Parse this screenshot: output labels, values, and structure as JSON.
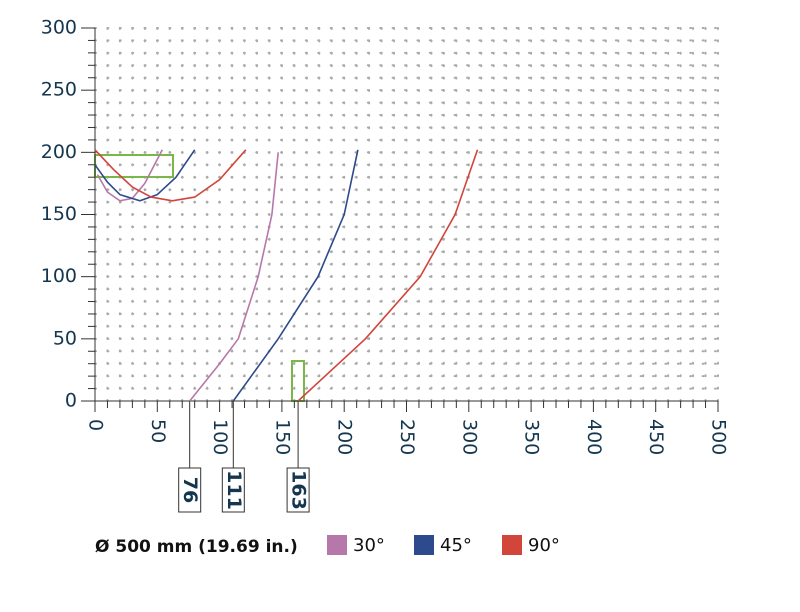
{
  "chart_data": {
    "type": "line",
    "xlim": [
      0,
      500
    ],
    "ylim": [
      0,
      300
    ],
    "xticks": [
      0,
      50,
      100,
      150,
      200,
      250,
      300,
      350,
      400,
      450,
      500
    ],
    "yticks": [
      0,
      50,
      100,
      150,
      200,
      250,
      300
    ],
    "grid": true,
    "markers": [
      76,
      111,
      163
    ],
    "legend_title": "Ø 500 mm (19.69 in.)",
    "series": [
      {
        "name": "30°",
        "color": "#b678a9",
        "x": [
          76,
          100,
          115,
          131,
          142,
          147,
          null,
          2,
          10,
          20,
          30,
          40,
          54
        ],
        "values": [
          0,
          30,
          50,
          100,
          150,
          200,
          null,
          182,
          168,
          161,
          163,
          175,
          202
        ]
      },
      {
        "name": "45°",
        "color": "#2c4a8c",
        "x": [
          111,
          147,
          179,
          200,
          211,
          null,
          0,
          10,
          20,
          36,
          50,
          65,
          80
        ],
        "values": [
          0,
          50,
          100,
          150,
          202,
          null,
          190,
          176,
          166,
          161,
          166,
          180,
          202
        ]
      },
      {
        "name": "90°",
        "color": "#d1453b",
        "x": [
          163,
          217,
          261,
          289,
          307,
          null,
          0,
          15,
          30,
          45,
          62,
          80,
          100,
          121
        ],
        "values": [
          0,
          50,
          100,
          150,
          202,
          null,
          202,
          186,
          172,
          164,
          161,
          164,
          178,
          202
        ]
      }
    ]
  }
}
